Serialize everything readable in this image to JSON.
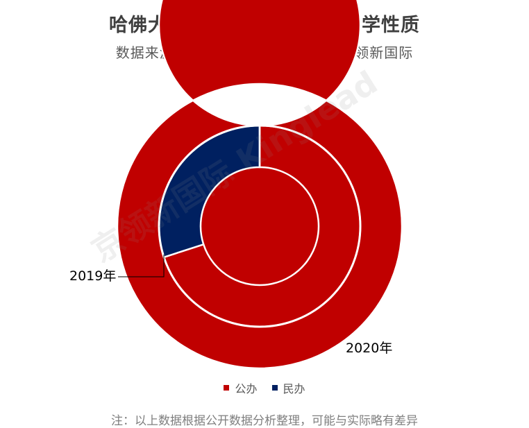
{
  "title": "哈佛大学录取中国内陆高中办学性质",
  "subtitle": "数据来源：公开信息    分析制图：京领新国际",
  "watermark": "京领新国际 Kinglead",
  "footnote": "注：以上数据根据公开数据分析整理，可能与实际略有差异",
  "colors": {
    "public": "#C00000",
    "private": "#002060",
    "separator": "#ffffff"
  },
  "chart_data": {
    "type": "pie",
    "variant": "doughnut",
    "categories": [
      "公办",
      "民办"
    ],
    "series": [
      {
        "name": "2020年",
        "values": [
          100,
          0
        ]
      },
      {
        "name": "2019年",
        "values": [
          70,
          30
        ]
      }
    ],
    "legend_position": "bottom",
    "legend": [
      {
        "label": "公办",
        "color": "#C00000"
      },
      {
        "label": "民办",
        "color": "#002060"
      }
    ]
  }
}
